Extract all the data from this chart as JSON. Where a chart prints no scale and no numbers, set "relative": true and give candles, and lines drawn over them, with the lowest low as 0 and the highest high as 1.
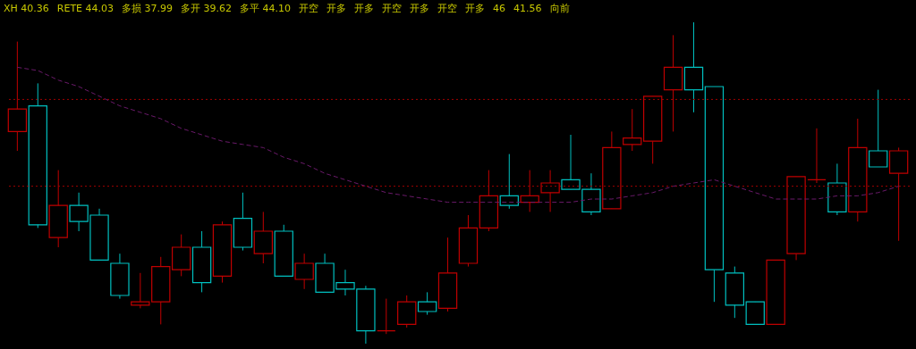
{
  "chart_data": {
    "type": "candlestick",
    "relative": true,
    "categories": [
      null,
      null,
      null,
      null,
      null,
      null,
      null,
      null,
      null,
      null,
      null,
      null,
      null,
      null,
      null,
      null,
      null,
      null,
      null,
      null,
      null,
      null,
      null,
      null,
      null,
      null,
      null,
      null,
      null,
      null,
      null,
      null,
      null,
      null,
      null,
      null,
      null,
      null,
      null,
      null,
      null,
      null,
      null,
      null
    ],
    "ohlc": [
      [
        0.66,
        0.94,
        0.6,
        0.73
      ],
      [
        0.74,
        0.81,
        0.36,
        0.37
      ],
      [
        0.33,
        0.54,
        0.3,
        0.43
      ],
      [
        0.43,
        0.47,
        0.35,
        0.38
      ],
      [
        0.4,
        0.42,
        0.26,
        0.26
      ],
      [
        0.25,
        0.28,
        0.14,
        0.15
      ],
      [
        0.12,
        0.22,
        0.11,
        0.13
      ],
      [
        0.13,
        0.27,
        0.06,
        0.24
      ],
      [
        0.23,
        0.34,
        0.21,
        0.3
      ],
      [
        0.3,
        0.35,
        0.16,
        0.19
      ],
      [
        0.21,
        0.38,
        0.19,
        0.37
      ],
      [
        0.39,
        0.47,
        0.29,
        0.3
      ],
      [
        0.28,
        0.41,
        0.25,
        0.35
      ],
      [
        0.35,
        0.37,
        0.21,
        0.21
      ],
      [
        0.2,
        0.28,
        0.17,
        0.25
      ],
      [
        0.25,
        0.28,
        0.16,
        0.16
      ],
      [
        0.19,
        0.23,
        0.15,
        0.17
      ],
      [
        0.17,
        0.18,
        0.0,
        0.04
      ],
      [
        0.04,
        0.14,
        0.03,
        0.04
      ],
      [
        0.06,
        0.15,
        0.05,
        0.13
      ],
      [
        0.13,
        0.16,
        0.09,
        0.1
      ],
      [
        0.11,
        0.33,
        0.1,
        0.22
      ],
      [
        0.25,
        0.4,
        0.24,
        0.36
      ],
      [
        0.36,
        0.54,
        0.35,
        0.46
      ],
      [
        0.46,
        0.59,
        0.42,
        0.43
      ],
      [
        0.44,
        0.54,
        0.41,
        0.46
      ],
      [
        0.47,
        0.54,
        0.41,
        0.5
      ],
      [
        0.51,
        0.65,
        0.48,
        0.48
      ],
      [
        0.48,
        0.53,
        0.4,
        0.41
      ],
      [
        0.42,
        0.66,
        0.42,
        0.61
      ],
      [
        0.62,
        0.73,
        0.6,
        0.64
      ],
      [
        0.63,
        0.77,
        0.56,
        0.77
      ],
      [
        0.79,
        0.96,
        0.66,
        0.86
      ],
      [
        0.86,
        1.0,
        0.72,
        0.79
      ],
      [
        0.8,
        0.8,
        0.13,
        0.23
      ],
      [
        0.22,
        0.24,
        0.08,
        0.12
      ],
      [
        0.13,
        0.13,
        0.06,
        0.06
      ],
      [
        0.06,
        0.26,
        0.06,
        0.26
      ],
      [
        0.28,
        0.52,
        0.26,
        0.52
      ],
      [
        0.51,
        0.67,
        0.5,
        0.51
      ],
      [
        0.5,
        0.56,
        0.4,
        0.41
      ],
      [
        0.41,
        0.7,
        0.38,
        0.61
      ],
      [
        0.6,
        0.79,
        0.55,
        0.55
      ],
      [
        0.53,
        0.61,
        0.32,
        0.6
      ]
    ],
    "colors": [
      "#c00000",
      "#00c0c0",
      "#c00000",
      "#00c0c0",
      "#00c0c0",
      "#00c0c0",
      "#c00000",
      "#c00000",
      "#c00000",
      "#00c0c0",
      "#c00000",
      "#00c0c0",
      "#c00000",
      "#00c0c0",
      "#c00000",
      "#00c0c0",
      "#00c0c0",
      "#00c0c0",
      "#c00000",
      "#c00000",
      "#00c0c0",
      "#c00000",
      "#c00000",
      "#c00000",
      "#00c0c0",
      "#c00000",
      "#c00000",
      "#00c0c0",
      "#00c0c0",
      "#c00000",
      "#c00000",
      "#c00000",
      "#c00000",
      "#00c0c0",
      "#00c0c0",
      "#00c0c0",
      "#00c0c0",
      "#c00000",
      "#c00000",
      "#c00000",
      "#00c0c0",
      "#c00000",
      "#00c0c0",
      "#c00000"
    ],
    "series": [
      {
        "type": "line",
        "color": "#6a1a6a",
        "line_style": "dashed",
        "values": [
          0.86,
          0.85,
          0.82,
          0.8,
          0.77,
          0.74,
          0.72,
          0.7,
          0.67,
          0.65,
          0.63,
          0.62,
          0.61,
          0.58,
          0.56,
          0.53,
          0.51,
          0.49,
          0.47,
          0.46,
          0.45,
          0.44,
          0.44,
          0.44,
          0.44,
          0.44,
          0.44,
          0.44,
          0.45,
          0.45,
          0.46,
          0.47,
          0.49,
          0.5,
          0.51,
          0.49,
          0.47,
          0.45,
          0.45,
          0.45,
          0.46,
          0.46,
          0.47,
          0.49
        ]
      }
    ],
    "ref_lines": [
      {
        "axis": "y",
        "value": 0.76,
        "color": "#a00000",
        "line_style": "dotted"
      },
      {
        "axis": "y",
        "value": 0.49,
        "color": "#a00000",
        "line_style": "dotted"
      }
    ],
    "annotations": [
      "XH 40.36",
      "RETE 44.03",
      "多损 37.99",
      "多开 39.62",
      "多平 44.10",
      "开空",
      "开多",
      "开多",
      "开空",
      "开多",
      "开空",
      "开多",
      "46",
      "41.56",
      "向前"
    ]
  }
}
